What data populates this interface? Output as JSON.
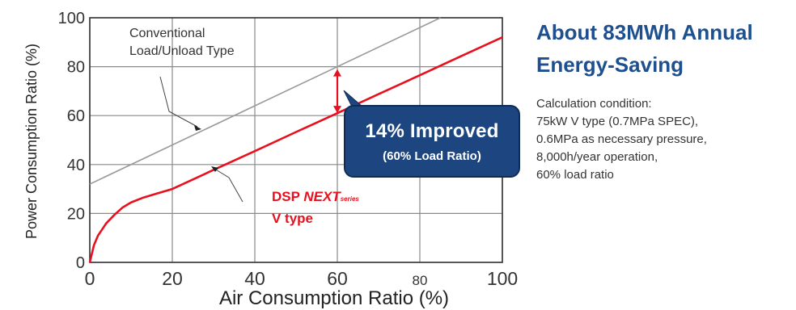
{
  "chart_data": {
    "type": "line",
    "xlabel": "Air Consumption Ratio (%)",
    "ylabel": "Power Consumption Ratio (%)",
    "xlim": [
      0,
      100
    ],
    "ylim": [
      0,
      100
    ],
    "x_ticks": [
      "0",
      "20",
      "40",
      "60",
      "80",
      "100"
    ],
    "y_ticks": [
      "0",
      "20",
      "40",
      "60",
      "80",
      "100"
    ],
    "grid": true,
    "series": [
      {
        "name_lines": [
          "Conventional",
          "Load/Unload Type"
        ],
        "color": "#999999",
        "x": [
          0,
          85
        ],
        "y": [
          32,
          100
        ]
      },
      {
        "name_parts": {
          "prefix": "DSP ",
          "brand": "NEXT",
          "suffix": "series",
          "line2": "V type"
        },
        "color": "#e8101e",
        "x": [
          0,
          1,
          2,
          4,
          6,
          8,
          10,
          13,
          16,
          20,
          30,
          40,
          50,
          60,
          70,
          80,
          90,
          100
        ],
        "y": [
          0,
          7,
          11,
          16,
          19.5,
          22.5,
          24.5,
          26.5,
          28,
          30,
          37.8,
          45.5,
          53.3,
          61,
          68.8,
          76.5,
          84.3,
          92
        ]
      }
    ],
    "annotation": {
      "x": 60,
      "y_from": 61,
      "y_to": 79,
      "main": "14% Improved",
      "sub": "(60% Load Ratio)"
    }
  },
  "side_panel": {
    "title_lines": [
      "About 83MWh Annual",
      "Energy-Saving"
    ],
    "calc_lines": [
      "Calculation condition:",
      "75kW V type (0.7MPa SPEC),",
      "0.6MPa as necessary pressure,",
      "8,000h/year operation,",
      "60% load ratio"
    ]
  },
  "colors": {
    "accent_blue": "#1e4f8f",
    "box_blue": "#1d4680",
    "red": "#e8101e"
  }
}
